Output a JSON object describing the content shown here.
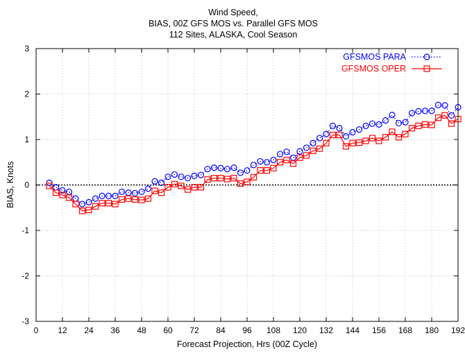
{
  "chart_data": {
    "type": "line",
    "title_lines": [
      "Wind Speed,",
      "BIAS, 00Z GFS MOS vs. Parallel GFS MOS",
      "112 Sites, ALASKA, Cool Season"
    ],
    "xlabel": "Forecast Projection, Hrs (00Z Cycle)",
    "ylabel": "BIAS, Knots",
    "xlim": [
      0,
      192
    ],
    "ylim": [
      -3,
      3
    ],
    "xticks": [
      0,
      12,
      24,
      36,
      48,
      60,
      72,
      84,
      96,
      108,
      120,
      132,
      144,
      156,
      168,
      180,
      192
    ],
    "yticks": [
      -3,
      -2,
      -1,
      0,
      1,
      2,
      3
    ],
    "grid": true,
    "zero_line": true,
    "legend_position": "top-right",
    "x": [
      6,
      9,
      12,
      15,
      18,
      21,
      24,
      27,
      30,
      33,
      36,
      39,
      42,
      45,
      48,
      51,
      54,
      57,
      60,
      63,
      66,
      69,
      72,
      75,
      78,
      81,
      84,
      87,
      90,
      93,
      96,
      99,
      102,
      105,
      108,
      111,
      114,
      117,
      120,
      123,
      126,
      129,
      132,
      135,
      138,
      141,
      144,
      147,
      150,
      153,
      156,
      159,
      162,
      165,
      168,
      171,
      174,
      177,
      180,
      183,
      186,
      189,
      192
    ],
    "series": [
      {
        "name": "GFSMOS PARA",
        "color": "#0000ff",
        "marker": "circle",
        "line_style": "dotted",
        "values": [
          0.05,
          -0.05,
          -0.12,
          -0.15,
          -0.3,
          -0.42,
          -0.38,
          -0.3,
          -0.24,
          -0.24,
          -0.24,
          -0.15,
          -0.17,
          -0.18,
          -0.15,
          -0.08,
          0.08,
          0.05,
          0.18,
          0.23,
          0.18,
          0.15,
          0.2,
          0.22,
          0.35,
          0.38,
          0.37,
          0.35,
          0.38,
          0.27,
          0.32,
          0.44,
          0.52,
          0.5,
          0.55,
          0.68,
          0.73,
          0.6,
          0.74,
          0.82,
          0.92,
          1.03,
          1.12,
          1.3,
          1.25,
          1.07,
          1.16,
          1.22,
          1.3,
          1.35,
          1.33,
          1.42,
          1.54,
          1.36,
          1.38,
          1.58,
          1.62,
          1.63,
          1.63,
          1.76,
          1.75,
          1.53,
          1.71
        ]
      },
      {
        "name": "GFSMOS OPER",
        "color": "#ff0000",
        "marker": "square",
        "line_style": "solid",
        "values": [
          -0.02,
          -0.17,
          -0.22,
          -0.28,
          -0.42,
          -0.57,
          -0.55,
          -0.47,
          -0.4,
          -0.4,
          -0.42,
          -0.32,
          -0.3,
          -0.32,
          -0.33,
          -0.3,
          -0.13,
          -0.17,
          -0.05,
          0.02,
          -0.02,
          -0.1,
          -0.05,
          -0.05,
          0.12,
          0.15,
          0.15,
          0.13,
          0.15,
          0.03,
          0.07,
          0.17,
          0.32,
          0.32,
          0.37,
          0.5,
          0.55,
          0.47,
          0.6,
          0.65,
          0.75,
          0.8,
          0.92,
          1.1,
          1.1,
          0.85,
          0.92,
          0.93,
          0.97,
          1.03,
          0.97,
          1.05,
          1.17,
          1.05,
          1.12,
          1.25,
          1.3,
          1.33,
          1.32,
          1.48,
          1.53,
          1.35,
          1.45
        ]
      }
    ]
  }
}
